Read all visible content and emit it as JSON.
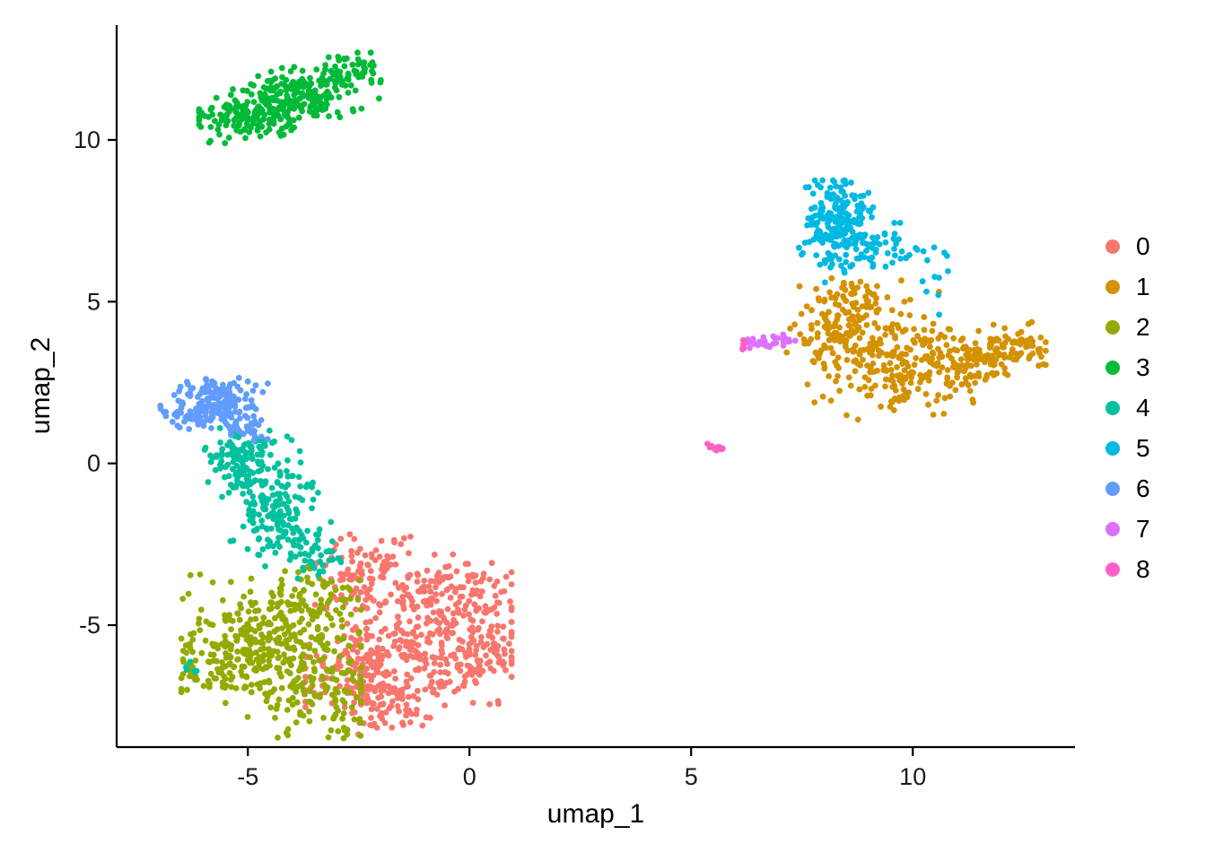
{
  "figure": {
    "background": "#ffffff",
    "axis_color": "#000000",
    "tick_label_color": "#1a1a1a",
    "title": ""
  },
  "chart_data": {
    "type": "scatter",
    "title": "",
    "xlabel": "umap_1",
    "ylabel": "umap_2",
    "xlim": [
      -7.96,
      13.66
    ],
    "ylim": [
      -8.77,
      13.55
    ],
    "xticks": [
      -5,
      0,
      5,
      10
    ],
    "yticks": [
      -5,
      0,
      5,
      10
    ],
    "grid": false,
    "legend_position": "right",
    "legend_title": "",
    "point_radius": 3.4,
    "series": [
      {
        "name": "0",
        "color": "#F8766D",
        "clip": [
          -3.7,
          0.95,
          -8.45,
          -1.75
        ],
        "blobs": [
          {
            "cx": -1.0,
            "cy": -5.2,
            "sx": 1.15,
            "sy": 1.1,
            "rot": 0,
            "n": 320
          },
          {
            "cx": -2.2,
            "cy": -6.6,
            "sx": 0.8,
            "sy": 0.75,
            "rot": 0,
            "n": 150
          },
          {
            "cx": -2.45,
            "cy": -3.2,
            "sx": 0.55,
            "sy": 0.65,
            "rot": 0,
            "n": 75
          },
          {
            "cx": -0.35,
            "cy": -3.9,
            "sx": 0.5,
            "sy": 0.55,
            "rot": 0,
            "n": 55
          },
          {
            "cx": 0.3,
            "cy": -5.6,
            "sx": 0.35,
            "sy": 0.9,
            "rot": 0,
            "n": 55
          },
          {
            "cx": -1.7,
            "cy": -7.7,
            "sx": 0.7,
            "sy": 0.35,
            "rot": 0,
            "n": 45
          }
        ]
      },
      {
        "name": "1",
        "color": "#D39200",
        "clip": [
          7.1,
          13.0,
          1.1,
          6.1
        ],
        "blobs": [
          {
            "cx": 9.3,
            "cy": 3.4,
            "sx": 0.85,
            "sy": 0.95,
            "rot": 0,
            "n": 170
          },
          {
            "cx": 10.6,
            "cy": 2.9,
            "sx": 0.8,
            "sy": 0.6,
            "rot": 0,
            "n": 120
          },
          {
            "cx": 11.7,
            "cy": 3.4,
            "sx": 0.7,
            "sy": 0.45,
            "rot": 15,
            "n": 85
          },
          {
            "cx": 12.5,
            "cy": 3.7,
            "sx": 0.35,
            "sy": 0.25,
            "rot": 0,
            "n": 25
          },
          {
            "cx": 8.3,
            "cy": 4.5,
            "sx": 0.45,
            "sy": 0.7,
            "rot": 0,
            "n": 55
          },
          {
            "cx": 7.8,
            "cy": 3.8,
            "sx": 0.4,
            "sy": 0.4,
            "rot": 0,
            "n": 30
          },
          {
            "cx": 8.9,
            "cy": 5.2,
            "sx": 0.5,
            "sy": 0.4,
            "rot": 0,
            "n": 35
          }
        ]
      },
      {
        "name": "2",
        "color": "#93AA00",
        "clip": [
          -6.5,
          -2.45,
          -8.5,
          -3.2
        ],
        "blobs": [
          {
            "cx": -4.5,
            "cy": -5.5,
            "sx": 1.0,
            "sy": 0.95,
            "rot": 0,
            "n": 300
          },
          {
            "cx": -3.5,
            "cy": -7.2,
            "sx": 0.7,
            "sy": 0.6,
            "rot": 0,
            "n": 110
          },
          {
            "cx": -5.6,
            "cy": -6.3,
            "sx": 0.5,
            "sy": 0.55,
            "rot": 0,
            "n": 70
          },
          {
            "cx": -3.4,
            "cy": -4.1,
            "sx": 0.5,
            "sy": 0.45,
            "rot": 0,
            "n": 50
          }
        ]
      },
      {
        "name": "3",
        "color": "#00BA38",
        "clip": [
          -6.1,
          -2.0,
          9.9,
          12.7
        ],
        "blobs": [
          {
            "cx": -4.1,
            "cy": 11.2,
            "sx": 1.0,
            "sy": 0.45,
            "rot": 25,
            "n": 300
          },
          {
            "cx": -2.6,
            "cy": 12.1,
            "sx": 0.4,
            "sy": 0.3,
            "rot": 25,
            "n": 40
          },
          {
            "cx": -5.4,
            "cy": 10.6,
            "sx": 0.4,
            "sy": 0.28,
            "rot": 15,
            "n": 35
          }
        ]
      },
      {
        "name": "4",
        "color": "#00C19F",
        "clip": [
          -6.6,
          -2.9,
          -6.7,
          1.1
        ],
        "blobs": [
          {
            "cx": -4.9,
            "cy": -0.1,
            "sx": 0.5,
            "sy": 0.65,
            "rot": 0,
            "n": 110
          },
          {
            "cx": -4.4,
            "cy": -1.4,
            "sx": 0.5,
            "sy": 0.7,
            "rot": 0,
            "n": 105
          },
          {
            "cx": -3.85,
            "cy": -2.45,
            "sx": 0.45,
            "sy": 0.45,
            "rot": 0,
            "n": 55
          },
          {
            "cx": -3.4,
            "cy": -3.0,
            "sx": 0.3,
            "sy": 0.3,
            "rot": 0,
            "n": 18
          },
          {
            "cx": -5.3,
            "cy": 0.4,
            "sx": 0.35,
            "sy": 0.3,
            "rot": 0,
            "n": 30
          },
          {
            "cx": -6.35,
            "cy": -6.35,
            "sx": 0.13,
            "sy": 0.12,
            "rot": 0,
            "n": 7
          }
        ]
      },
      {
        "name": "5",
        "color": "#00B9E3",
        "clip": [
          7.3,
          10.9,
          4.6,
          8.75
        ],
        "blobs": [
          {
            "cx": 8.25,
            "cy": 7.55,
            "sx": 0.42,
            "sy": 0.75,
            "rot": 0,
            "n": 160
          },
          {
            "cx": 8.8,
            "cy": 7.0,
            "sx": 0.55,
            "sy": 0.45,
            "rot": -20,
            "n": 60
          },
          {
            "cx": 9.7,
            "cy": 6.6,
            "sx": 0.55,
            "sy": 0.35,
            "rot": -15,
            "n": 28
          },
          {
            "cx": 10.5,
            "cy": 5.4,
            "sx": 0.25,
            "sy": 0.4,
            "rot": 0,
            "n": 6
          },
          {
            "cx": 8.2,
            "cy": 6.1,
            "sx": 0.2,
            "sy": 0.3,
            "rot": 0,
            "n": 12
          }
        ]
      },
      {
        "name": "6",
        "color": "#619CFF",
        "clip": [
          -7.15,
          -4.55,
          0.7,
          2.65
        ],
        "blobs": [
          {
            "cx": -5.6,
            "cy": 1.85,
            "sx": 0.5,
            "sy": 0.38,
            "rot": 0,
            "n": 150
          },
          {
            "cx": -6.4,
            "cy": 1.6,
            "sx": 0.32,
            "sy": 0.28,
            "rot": 0,
            "n": 45
          },
          {
            "cx": -5.05,
            "cy": 1.1,
            "sx": 0.3,
            "sy": 0.25,
            "rot": 0,
            "n": 25
          }
        ]
      },
      {
        "name": "7",
        "color": "#DB72FB",
        "clip": [
          6.15,
          7.35,
          3.4,
          4.1
        ],
        "blobs": [
          {
            "cx": 6.7,
            "cy": 3.75,
            "sx": 0.32,
            "sy": 0.1,
            "rot": 5,
            "n": 38
          }
        ]
      },
      {
        "name": "8",
        "color": "#FF61C3",
        "clip": [
          5.3,
          6.4,
          0.2,
          3.9
        ],
        "blobs": [
          {
            "cx": 5.5,
            "cy": 0.45,
            "sx": 0.1,
            "sy": 0.11,
            "rot": 0,
            "n": 13
          },
          {
            "cx": 6.2,
            "cy": 3.7,
            "sx": 0.07,
            "sy": 0.07,
            "rot": 0,
            "n": 5
          }
        ]
      }
    ]
  }
}
